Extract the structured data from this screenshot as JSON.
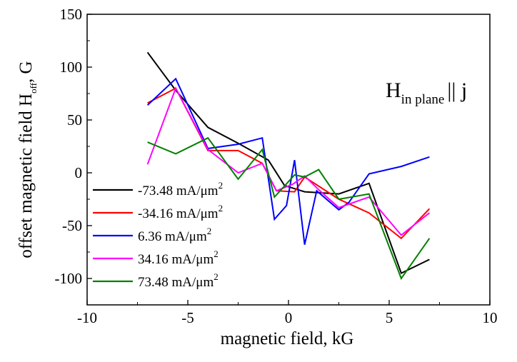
{
  "chart_data": {
    "type": "line",
    "title": "",
    "xlabel": "magnetic field, kG",
    "ylabel_main": "offset magnetic field H",
    "ylabel_sub": "off",
    "ylabel_suffix": ", G",
    "xlim": [
      -10,
      10
    ],
    "ylim": [
      -125,
      150
    ],
    "x_ticks": [
      -10,
      -5,
      0,
      5,
      10
    ],
    "y_ticks": [
      150,
      100,
      50,
      0,
      -50,
      -100
    ],
    "x_tick_labels": [
      "-10",
      "-5",
      "0",
      "5",
      "10"
    ],
    "y_tick_labels": [
      "150",
      "100",
      "50",
      "0",
      "-50",
      "-100"
    ],
    "grid": false,
    "legend_position": "bottom-left",
    "annotation": {
      "main": "H",
      "sub": "in plane",
      "suffix": "|| j"
    },
    "series": [
      {
        "name": "-73.48 mA/μm",
        "sup": "2",
        "color": "#000000",
        "x": [
          -7.0,
          -5.6,
          -4.0,
          -2.5,
          -1.0,
          -0.2,
          0.8,
          2.5,
          4.0,
          5.6,
          7.0
        ],
        "y": [
          114,
          78,
          43,
          28,
          12,
          -12,
          -18,
          -20,
          -10,
          -95,
          -82
        ]
      },
      {
        "name": "-34.16 mA/μm",
        "sup": "2",
        "color": "#ff0000",
        "x": [
          -7.0,
          -5.6,
          -4.0,
          -2.5,
          -1.3,
          -0.6,
          0.3,
          0.8,
          2.5,
          4.0,
          5.6,
          7.0
        ],
        "y": [
          66,
          80,
          21,
          21,
          9,
          -17,
          -18,
          -4,
          -25,
          -38,
          -62,
          -34
        ]
      },
      {
        "name": "6.36 mA/μm",
        "sup": "2",
        "color": "#0000ff",
        "x": [
          -7.0,
          -5.6,
          -4.0,
          -2.5,
          -1.3,
          -0.7,
          -0.1,
          0.3,
          0.8,
          1.4,
          2.5,
          3.0,
          4.0,
          5.6,
          7.0
        ],
        "y": [
          64,
          89,
          23,
          27,
          33,
          -44,
          -31,
          12,
          -68,
          -17,
          -35,
          -28,
          -1,
          6,
          15
        ]
      },
      {
        "name": "34.16 mA/μm",
        "sup": "2",
        "color": "#ff00ff",
        "x": [
          -7.0,
          -5.6,
          -4.0,
          -2.5,
          -1.3,
          -0.6,
          0.2,
          0.8,
          1.5,
          2.5,
          4.0,
          5.6,
          7.0
        ],
        "y": [
          8,
          80,
          22,
          0,
          9,
          -17,
          -11,
          -3,
          -16,
          -33,
          -23,
          -59,
          -38
        ]
      },
      {
        "name": "73.48 mA/μm",
        "sup": "2",
        "color": "#008000",
        "x": [
          -7.0,
          -5.6,
          -4.0,
          -2.5,
          -1.3,
          -0.7,
          0.3,
          0.8,
          1.5,
          2.5,
          4.0,
          5.6,
          7.0
        ],
        "y": [
          29,
          18,
          33,
          -6,
          22,
          -23,
          -2,
          -4,
          3,
          -25,
          -20,
          -100,
          -62
        ]
      }
    ]
  }
}
